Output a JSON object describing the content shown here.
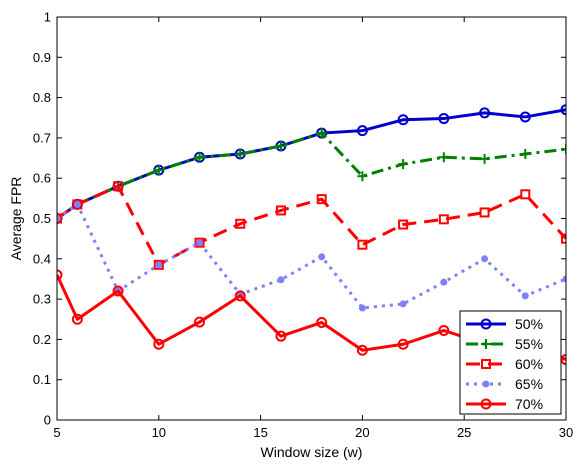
{
  "chart_data": {
    "type": "line",
    "xlabel": "Window size (w)",
    "ylabel": "Average FPR",
    "xlim": [
      5,
      30
    ],
    "ylim": [
      0,
      1
    ],
    "xticks": [
      5,
      10,
      15,
      20,
      25,
      30
    ],
    "yticks": [
      0,
      0.1,
      0.2,
      0.3,
      0.4,
      0.5,
      0.6,
      0.7,
      0.8,
      0.9,
      1
    ],
    "xtick_labels": [
      "5",
      "10",
      "15",
      "20",
      "25",
      "30"
    ],
    "ytick_labels": [
      "0",
      "0.1",
      "0.2",
      "0.3",
      "0.4",
      "0.5",
      "0.6",
      "0.7",
      "0.8",
      "0.9",
      "1"
    ],
    "grid": false,
    "legend_position": "bottom-right",
    "series": [
      {
        "name": "50%",
        "color": "#0000cc",
        "dash": "solid",
        "marker": "circle-open",
        "x": [
          5,
          6,
          8,
          10,
          12,
          14,
          16,
          18,
          20,
          22,
          24,
          26,
          28,
          30
        ],
        "y": [
          0.5,
          0.535,
          0.58,
          0.62,
          0.652,
          0.66,
          0.68,
          0.712,
          0.718,
          0.745,
          0.748,
          0.762,
          0.752,
          0.77
        ]
      },
      {
        "name": "55%",
        "color": "#008000",
        "dash": "dashdot",
        "marker": "plus",
        "x": [
          5,
          6,
          8,
          10,
          12,
          14,
          16,
          18,
          20,
          22,
          24,
          26,
          28,
          30
        ],
        "y": [
          0.5,
          0.535,
          0.58,
          0.62,
          0.652,
          0.66,
          0.68,
          0.712,
          0.605,
          0.635,
          0.652,
          0.648,
          0.66,
          0.672
        ]
      },
      {
        "name": "60%",
        "color": "#ff0000",
        "dash": "dashed",
        "marker": "square-open",
        "x": [
          5,
          6,
          8,
          10,
          12,
          14,
          16,
          18,
          20,
          22,
          24,
          26,
          28,
          30
        ],
        "y": [
          0.5,
          0.535,
          0.58,
          0.385,
          0.44,
          0.487,
          0.52,
          0.548,
          0.435,
          0.485,
          0.498,
          0.515,
          0.56,
          0.45
        ]
      },
      {
        "name": "65%",
        "color": "#8080ff",
        "dash": "dotted",
        "marker": "dot",
        "x": [
          5,
          6,
          8,
          10,
          12,
          14,
          16,
          18,
          20,
          22,
          24,
          26,
          28,
          30
        ],
        "y": [
          0.5,
          0.535,
          0.32,
          0.385,
          0.44,
          0.312,
          0.348,
          0.405,
          0.278,
          0.288,
          0.342,
          0.4,
          0.308,
          0.35
        ]
      },
      {
        "name": "70%",
        "color": "#ff0000",
        "dash": "solid",
        "marker": "circle-open",
        "x": [
          5,
          6,
          8,
          10,
          12,
          14,
          16,
          18,
          20,
          22,
          24,
          26,
          28,
          30
        ],
        "y": [
          0.36,
          0.25,
          0.32,
          0.188,
          0.243,
          0.308,
          0.208,
          0.242,
          0.173,
          0.188,
          0.222,
          0.19,
          0.19,
          0.15
        ]
      }
    ]
  }
}
